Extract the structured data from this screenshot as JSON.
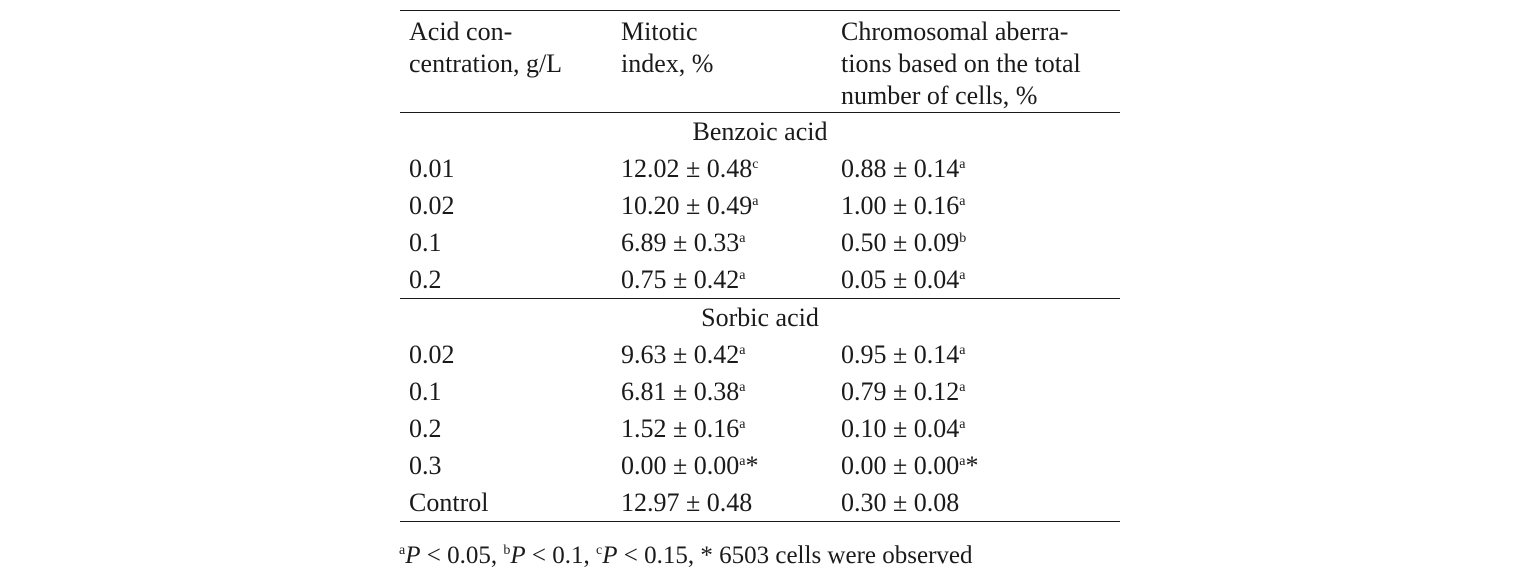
{
  "table": {
    "headers": [
      [
        "Acid con-",
        "centration, g/L"
      ],
      [
        "Mitotic",
        "index, %"
      ],
      [
        "Chromosomal aberra-",
        "tions based on the total",
        "number of cells, %"
      ]
    ],
    "groups": [
      {
        "name": "Benzoic acid",
        "rows": [
          {
            "conc": "0.01",
            "mitotic": "12.02 ± 0.48",
            "mitotic_sup": "c",
            "aberr": "0.88 ± 0.14",
            "aberr_sup": "a"
          },
          {
            "conc": "0.02",
            "mitotic": "10.20 ± 0.49",
            "mitotic_sup": "a",
            "aberr": "1.00 ± 0.16",
            "aberr_sup": "a"
          },
          {
            "conc": "0.1",
            "mitotic": "6.89 ± 0.33",
            "mitotic_sup": "a",
            "aberr": "0.50 ± 0.09",
            "aberr_sup": "b"
          },
          {
            "conc": "0.2",
            "mitotic": "0.75 ± 0.42",
            "mitotic_sup": "a",
            "aberr": "0.05 ± 0.04",
            "aberr_sup": "a"
          }
        ]
      },
      {
        "name": "Sorbic acid",
        "rows": [
          {
            "conc": "0.02",
            "mitotic": "9.63 ± 0.42",
            "mitotic_sup": "a",
            "aberr": "0.95 ± 0.14",
            "aberr_sup": "a"
          },
          {
            "conc": "0.1",
            "mitotic": "6.81 ± 0.38",
            "mitotic_sup": "a",
            "aberr": "0.79 ± 0.12",
            "aberr_sup": "a"
          },
          {
            "conc": "0.2",
            "mitotic": "1.52 ± 0.16",
            "mitotic_sup": "a",
            "aberr": "0.10 ± 0.04",
            "aberr_sup": "a"
          },
          {
            "conc": "0.3",
            "mitotic": "0.00 ± 0.00",
            "mitotic_sup": "a",
            "mitotic_tail": "*",
            "aberr": "0.00 ± 0.00",
            "aberr_sup": "a",
            "aberr_tail": "*"
          },
          {
            "conc": "Control",
            "mitotic": "12.97 ± 0.48",
            "mitotic_sup": "",
            "aberr": "0.30 ± 0.08",
            "aberr_sup": ""
          }
        ]
      }
    ]
  },
  "footnote": {
    "a_sup": "a",
    "a_p": "P",
    "a_text": " < 0.05, ",
    "b_sup": "b",
    "b_p": "P",
    "b_text": " < 0.1, ",
    "c_sup": "c",
    "c_p": "P",
    "c_text": " < 0.15, ",
    "star_text": "* 6503 cells were observed"
  }
}
